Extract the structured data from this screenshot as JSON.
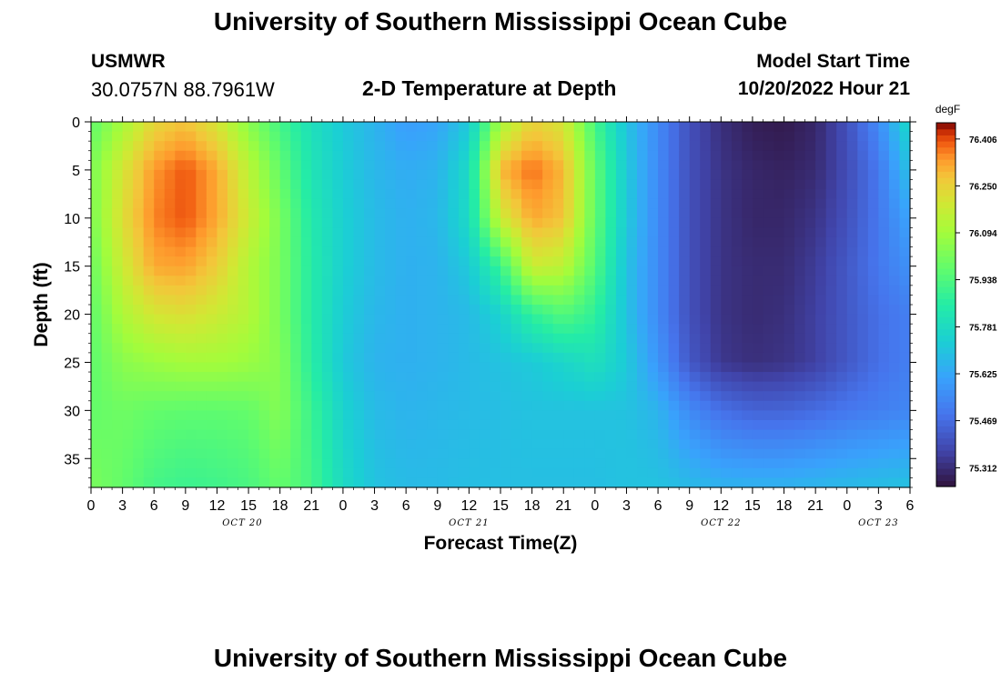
{
  "header": {
    "title": "University of Southern Mississippi Ocean Cube",
    "station": "USMWR",
    "coords": "30.0757N  88.7961W",
    "subtitle": "2-D Temperature at Depth",
    "model_label": "Model Start Time",
    "model_time": "10/20/2022 Hour 21"
  },
  "footer": {
    "title": "University of Southern Mississippi Ocean Cube"
  },
  "chart_data": {
    "type": "heatmap",
    "title": "2-D Temperature at Depth",
    "xlabel": "Forecast Time(Z)",
    "ylabel": "Depth (ft)",
    "x_start_hour": 0,
    "x_end_hour": 78,
    "x_tick_labels": [
      "0",
      "3",
      "6",
      "9",
      "12",
      "15",
      "18",
      "21",
      "0",
      "3",
      "6",
      "9",
      "12",
      "15",
      "18",
      "21",
      "0",
      "3",
      "6",
      "9",
      "12",
      "15",
      "18",
      "21",
      "0",
      "3",
      "6"
    ],
    "date_labels": [
      {
        "label": "OCT 20",
        "hour": 12
      },
      {
        "label": "OCT 21",
        "hour": 36
      },
      {
        "label": "OCT 22",
        "hour": 60
      },
      {
        "label": "OCT 23",
        "hour": 75
      }
    ],
    "ylim": [
      0,
      38
    ],
    "y_ticks": [
      0,
      5,
      10,
      15,
      20,
      25,
      30,
      35
    ],
    "colorbar": {
      "unit": "degF",
      "min": 75.25,
      "max": 76.46,
      "tick_values": [
        76.406,
        76.25,
        76.094,
        75.938,
        75.781,
        75.625,
        75.469,
        75.312
      ],
      "tick_labels": [
        "76.406",
        "76.250",
        "76.094",
        "75.938",
        "75.781",
        "75.625",
        "75.469",
        "75.312"
      ]
    },
    "depths": [
      0,
      5,
      10,
      15,
      20,
      25,
      30,
      38
    ],
    "hours": [
      0,
      3,
      6,
      9,
      12,
      15,
      18,
      21,
      24,
      27,
      30,
      33,
      36,
      39,
      42,
      45,
      48,
      51,
      54,
      57,
      60,
      63,
      66,
      69,
      72,
      75,
      78
    ],
    "values": [
      [
        75.97,
        76.1,
        76.24,
        76.28,
        76.2,
        76.05,
        75.92,
        75.8,
        75.72,
        75.66,
        75.6,
        75.62,
        75.72,
        76.1,
        76.25,
        76.2,
        75.92,
        75.7,
        75.55,
        75.4,
        75.32,
        75.28,
        75.27,
        75.3,
        75.4,
        75.55,
        75.78
      ],
      [
        76.02,
        76.2,
        76.34,
        76.4,
        76.32,
        76.15,
        75.98,
        75.82,
        75.73,
        75.67,
        75.64,
        75.66,
        75.78,
        76.3,
        76.38,
        76.3,
        75.98,
        75.72,
        75.55,
        75.4,
        75.33,
        75.3,
        75.29,
        75.31,
        75.39,
        75.5,
        75.7
      ],
      [
        76.02,
        76.22,
        76.36,
        76.4,
        76.32,
        76.18,
        76.02,
        75.84,
        75.74,
        75.68,
        75.65,
        75.67,
        75.78,
        76.18,
        76.32,
        76.28,
        75.98,
        75.72,
        75.55,
        75.4,
        75.33,
        75.3,
        75.3,
        75.33,
        75.4,
        75.5,
        75.62
      ],
      [
        75.99,
        76.18,
        76.32,
        76.33,
        76.26,
        76.13,
        76.02,
        75.85,
        75.74,
        75.68,
        75.65,
        75.66,
        75.72,
        75.9,
        76.18,
        76.15,
        75.95,
        75.7,
        75.55,
        75.4,
        75.33,
        75.31,
        75.31,
        75.35,
        75.42,
        75.5,
        75.57
      ],
      [
        75.97,
        76.12,
        76.2,
        76.22,
        76.18,
        76.13,
        76.02,
        75.85,
        75.73,
        75.67,
        75.65,
        75.66,
        75.68,
        75.75,
        75.88,
        75.95,
        75.88,
        75.7,
        75.55,
        75.4,
        75.33,
        75.31,
        75.32,
        75.36,
        75.42,
        75.48,
        75.52
      ],
      [
        75.97,
        76.05,
        76.08,
        76.1,
        76.1,
        76.08,
        76.04,
        75.86,
        75.72,
        75.66,
        75.65,
        75.66,
        75.68,
        75.7,
        75.72,
        75.76,
        75.8,
        75.72,
        75.58,
        75.42,
        75.34,
        75.32,
        75.33,
        75.36,
        75.42,
        75.48,
        75.52
      ],
      [
        75.98,
        76.0,
        75.98,
        75.97,
        75.97,
        75.98,
        76.04,
        75.9,
        75.75,
        75.68,
        75.66,
        75.67,
        75.68,
        75.69,
        75.7,
        75.7,
        75.7,
        75.7,
        75.66,
        75.55,
        75.48,
        75.45,
        75.45,
        75.47,
        75.5,
        75.52,
        75.54
      ],
      [
        76.02,
        75.98,
        75.92,
        75.9,
        75.91,
        75.93,
        75.98,
        75.92,
        75.78,
        75.7,
        75.68,
        75.68,
        75.69,
        75.69,
        75.69,
        75.69,
        75.69,
        75.7,
        75.7,
        75.68,
        75.66,
        75.66,
        75.66,
        75.67,
        75.68,
        75.69,
        75.7
      ]
    ]
  }
}
